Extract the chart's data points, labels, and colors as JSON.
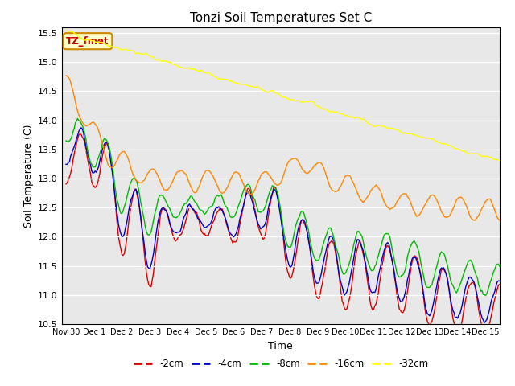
{
  "title": "Tonzi Soil Temperatures Set C",
  "xlabel": "Time",
  "ylabel": "Soil Temperature (C)",
  "ylim": [
    10.5,
    15.6
  ],
  "annotation_text": "TZ_fmet",
  "annotation_bg": "#ffffcc",
  "annotation_border": "#cc8800",
  "annotation_text_color": "#cc0000",
  "bg_color": "#e8e8e8",
  "series": {
    "2cm": {
      "color": "#dd0000",
      "label": "-2cm"
    },
    "4cm": {
      "color": "#0000cc",
      "label": "-4cm"
    },
    "8cm": {
      "color": "#00bb00",
      "label": "-8cm"
    },
    "16cm": {
      "color": "#ff8800",
      "label": "-16cm"
    },
    "32cm": {
      "color": "#ffff00",
      "label": "-32cm"
    }
  },
  "xtick_labels": [
    "Nov 30",
    "Dec 1",
    "Dec 2",
    "Dec 3",
    "Dec 4",
    "Dec 5",
    "Dec 6",
    "Dec 7",
    "Dec 8",
    "Dec 9",
    "Dec 10",
    "Dec 11",
    "Dec 12",
    "Dec 13",
    "Dec 14",
    "Dec 15"
  ],
  "ytick_labels": [
    10.5,
    11.0,
    11.5,
    12.0,
    12.5,
    13.0,
    13.5,
    14.0,
    14.5,
    15.0,
    15.5
  ],
  "figsize": [
    6.4,
    4.8
  ],
  "dpi": 100
}
